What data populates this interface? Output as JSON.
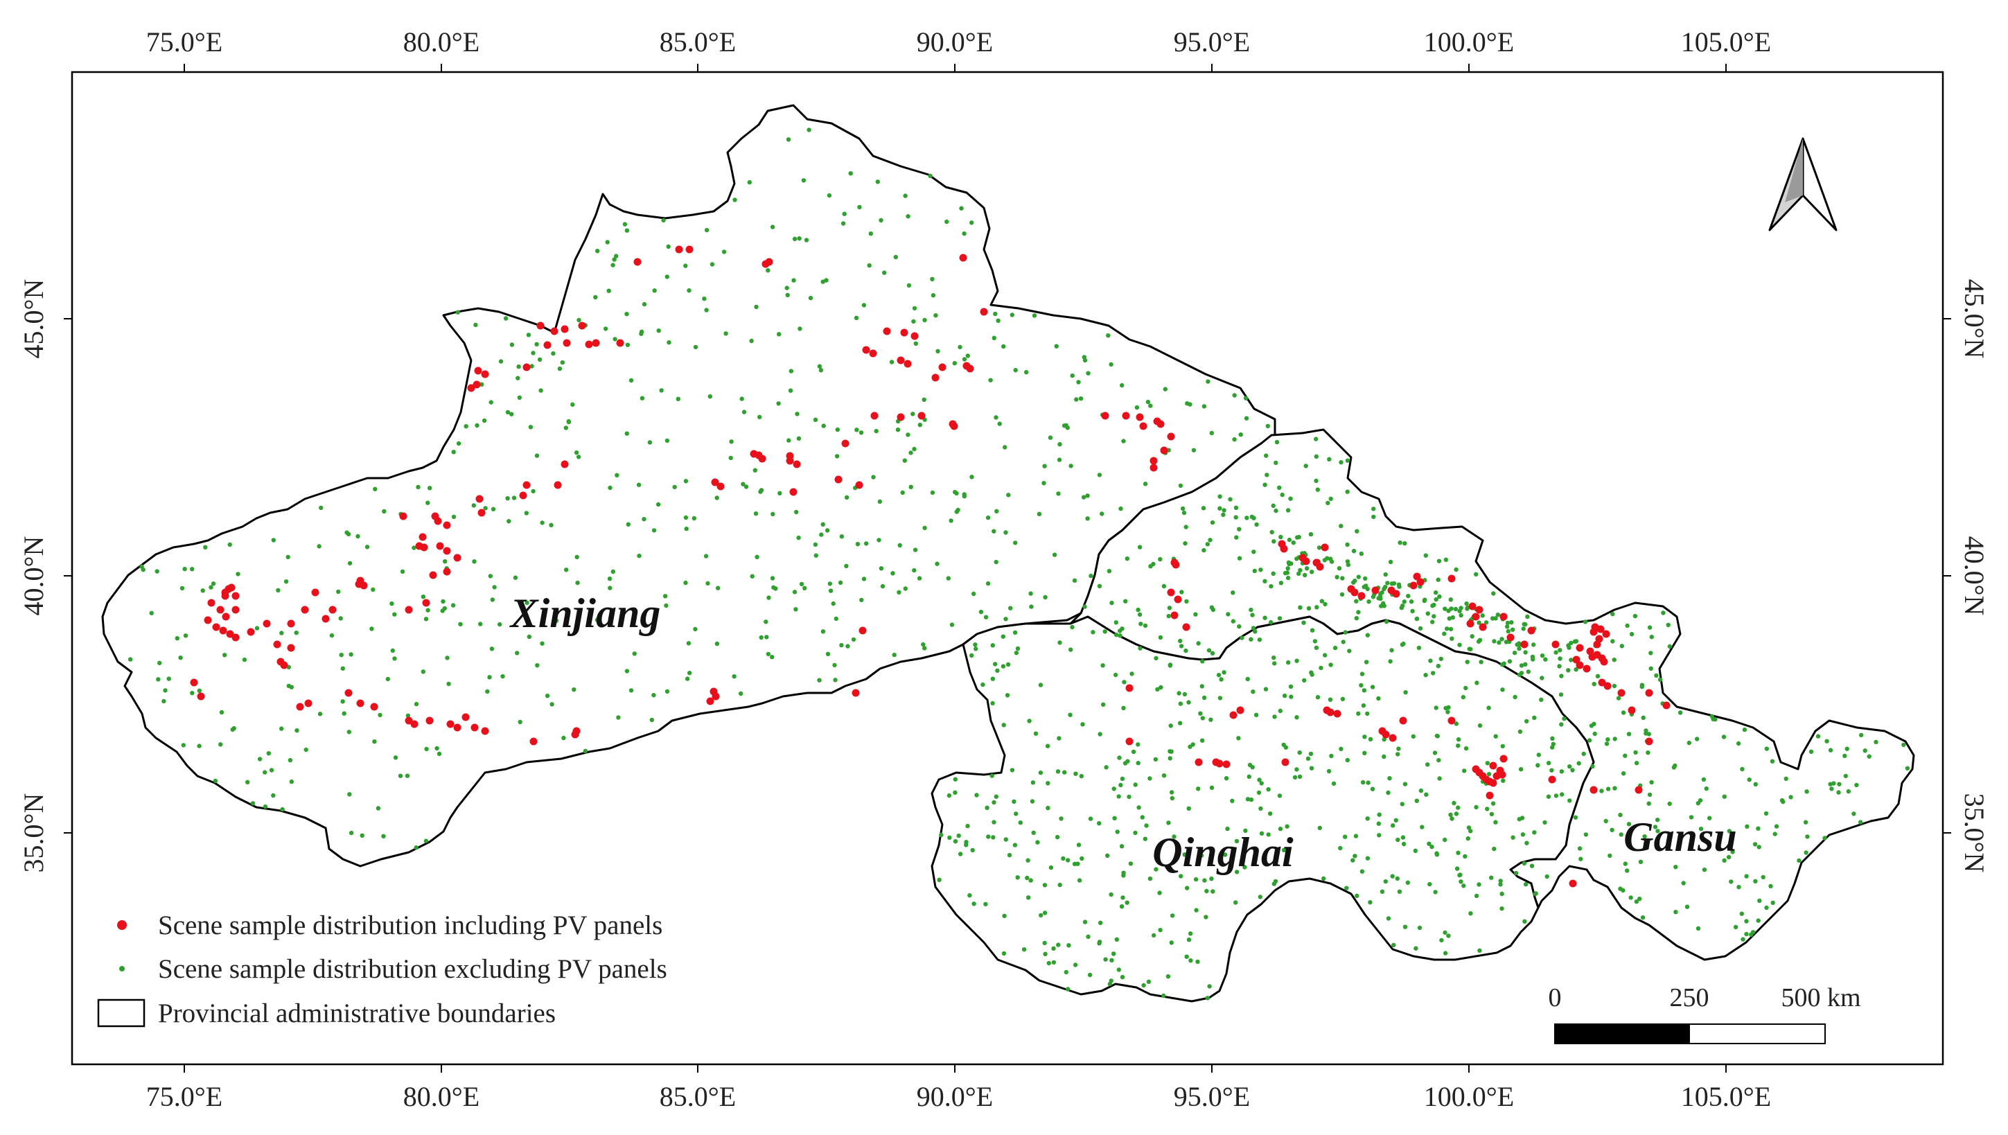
{
  "map": {
    "graticule": {
      "longitude_labels": [
        "75.0°E",
        "80.0°E",
        "85.0°E",
        "90.0°E",
        "95.0°E",
        "100.0°E",
        "105.0°E"
      ],
      "latitude_labels": [
        "45.0°N",
        "40.0°N",
        "35.0°N"
      ]
    },
    "regions": {
      "xinjiang": "Xinjiang",
      "qinghai": "Qinghai",
      "gansu": "Gansu"
    },
    "legend": {
      "pv": "Scene sample distribution including PV panels",
      "non_pv": "Scene sample distribution excluding PV panels",
      "boundary": "Provincial administrative boundaries"
    },
    "scale_bar": {
      "labels": [
        "0",
        "250",
        "500 km"
      ]
    },
    "colors": {
      "pv_points": "#e8101a",
      "non_pv_points": "#2fa12f",
      "boundary": "#000000",
      "north_arrow_fill": "#bdbdbd"
    },
    "icons": {
      "north_arrow": "north-arrow-icon"
    }
  }
}
